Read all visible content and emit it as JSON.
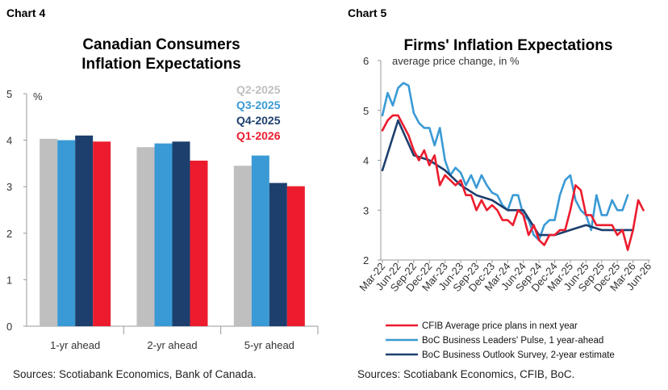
{
  "charts": [
    {
      "panel_label": "Chart 4",
      "title_lines": [
        "Canadian Consumers",
        "Inflation Expectations"
      ],
      "source": "Sources: Scotiabank Economics, Bank of Canada."
    },
    {
      "panel_label": "Chart 5",
      "title_lines": [
        "Firms' Inflation Expectations"
      ],
      "source": "Sources: Scotiabank Economics, CFIB, BoC."
    }
  ],
  "chart_data": [
    {
      "type": "bar",
      "title": "Canadian Consumers Inflation Expectations",
      "ylabel": "%",
      "ylim": [
        0,
        5
      ],
      "yticks": [
        "0",
        "1",
        "2",
        "3",
        "4",
        "5"
      ],
      "categories": [
        "1-yr ahead",
        "2-yr ahead",
        "5-yr ahead"
      ],
      "legend_position": "top-right",
      "series": [
        {
          "name": "Q2-2025",
          "color": "#bfbfbf",
          "values": [
            4.03,
            3.85,
            3.45
          ]
        },
        {
          "name": "Q3-2025",
          "color": "#3a9ad5",
          "values": [
            4.0,
            3.93,
            3.67
          ]
        },
        {
          "name": "Q4-2025",
          "color": "#1d3f6e",
          "values": [
            4.1,
            3.97,
            3.08
          ]
        },
        {
          "name": "Q1-2026",
          "color": "#ec1c2e",
          "values": [
            3.97,
            3.56,
            3.01
          ]
        }
      ]
    },
    {
      "type": "line",
      "title": "Firms' Inflation Expectations",
      "ylabel": "average price change, in %",
      "ylim": [
        2,
        6
      ],
      "yticks": [
        "2",
        "3",
        "4",
        "5",
        "6"
      ],
      "x_range": [
        "Mar-22",
        "Jun-26"
      ],
      "x_tick_labels": [
        "Mar-22",
        "Jun-22",
        "Sep-22",
        "Dec-22",
        "Mar-23",
        "Jun-23",
        "Sep-23",
        "Dec-23",
        "Mar-24",
        "Jun-24",
        "Sep-24",
        "Dec-24",
        "Mar-25",
        "Jun-25",
        "Sep-25",
        "Dec-25",
        "Mar-26",
        "Jun-26"
      ],
      "legend_position": "bottom",
      "series": [
        {
          "name": "CFIB Average price plans in next year",
          "color": "#ec1c2e",
          "x": [
            "Mar-22",
            "Apr-22",
            "May-22",
            "Jun-22",
            "Jul-22",
            "Aug-22",
            "Sep-22",
            "Oct-22",
            "Nov-22",
            "Dec-22",
            "Jan-23",
            "Feb-23",
            "Mar-23",
            "Apr-23",
            "May-23",
            "Jun-23",
            "Jul-23",
            "Aug-23",
            "Sep-23",
            "Oct-23",
            "Nov-23",
            "Dec-23",
            "Jan-24",
            "Feb-24",
            "Mar-24",
            "Apr-24",
            "May-24",
            "Jun-24",
            "Jul-24",
            "Aug-24",
            "Sep-24",
            "Oct-24",
            "Nov-24",
            "Dec-24",
            "Jan-25",
            "Feb-25",
            "Mar-25",
            "Apr-25",
            "May-25",
            "Jun-25",
            "Jul-25",
            "Aug-25",
            "Sep-25",
            "Oct-25",
            "Nov-25",
            "Dec-25",
            "Jan-26",
            "Feb-26",
            "Mar-26",
            "Apr-26",
            "May-26"
          ],
          "values": [
            4.6,
            4.8,
            4.9,
            4.9,
            4.7,
            4.5,
            4.2,
            4.0,
            4.2,
            3.9,
            4.1,
            3.5,
            3.7,
            3.6,
            3.5,
            3.6,
            3.3,
            3.3,
            3.0,
            3.2,
            3.0,
            3.1,
            3.0,
            2.8,
            2.8,
            2.7,
            3.0,
            2.9,
            2.5,
            2.7,
            2.4,
            2.3,
            2.5,
            2.5,
            2.6,
            2.6,
            3.0,
            3.5,
            3.4,
            2.9,
            2.9,
            2.7,
            2.7,
            2.7,
            2.7,
            2.5,
            2.6,
            2.2,
            2.6,
            3.2,
            3.0
          ]
        },
        {
          "name": "BoC Business Leaders' Pulse, 1 year-ahead",
          "color": "#3a9ad5",
          "x": [
            "Mar-22",
            "Apr-22",
            "May-22",
            "Jun-22",
            "Jul-22",
            "Aug-22",
            "Sep-22",
            "Oct-22",
            "Nov-22",
            "Dec-22",
            "Jan-23",
            "Feb-23",
            "Mar-23",
            "Apr-23",
            "May-23",
            "Jun-23",
            "Jul-23",
            "Aug-23",
            "Sep-23",
            "Oct-23",
            "Nov-23",
            "Dec-23",
            "Jan-24",
            "Feb-24",
            "Mar-24",
            "Apr-24",
            "May-24",
            "Jun-24",
            "Jul-24",
            "Aug-24",
            "Sep-24",
            "Oct-24",
            "Nov-24",
            "Dec-24",
            "Jan-25",
            "Feb-25",
            "Mar-25",
            "Apr-25",
            "May-25",
            "Jun-25",
            "Jul-25",
            "Aug-25",
            "Sep-25",
            "Oct-25",
            "Nov-25",
            "Dec-25",
            "Jan-26",
            "Feb-26"
          ],
          "values": [
            4.9,
            5.35,
            5.1,
            5.45,
            5.55,
            5.5,
            4.95,
            4.75,
            4.65,
            4.65,
            4.3,
            4.65,
            4.0,
            3.7,
            3.85,
            3.75,
            3.5,
            3.7,
            3.45,
            3.7,
            3.5,
            3.35,
            3.3,
            3.1,
            3.0,
            3.3,
            3.3,
            2.9,
            2.8,
            2.5,
            2.4,
            2.7,
            2.8,
            2.8,
            3.3,
            3.6,
            3.7,
            3.2,
            3.0,
            2.9,
            2.6,
            3.3,
            2.9,
            2.9,
            3.2,
            3.0,
            3.0,
            3.3
          ]
        },
        {
          "name": "BoC Business Outlook Survey, 2-year estimate",
          "color": "#1d3f6e",
          "x": [
            "Mar-22",
            "Jun-22",
            "Sep-22",
            "Dec-22",
            "Mar-23",
            "Jun-23",
            "Sep-23",
            "Dec-23",
            "Mar-24",
            "Jun-24",
            "Sep-24",
            "Dec-24",
            "Mar-25",
            "Jun-25",
            "Sep-25",
            "Dec-25",
            "Mar-26"
          ],
          "values": [
            3.8,
            4.8,
            4.1,
            4.0,
            3.8,
            3.5,
            3.3,
            3.2,
            3.0,
            3.0,
            2.5,
            2.5,
            2.6,
            2.7,
            2.6,
            2.6,
            2.6
          ]
        }
      ]
    }
  ]
}
